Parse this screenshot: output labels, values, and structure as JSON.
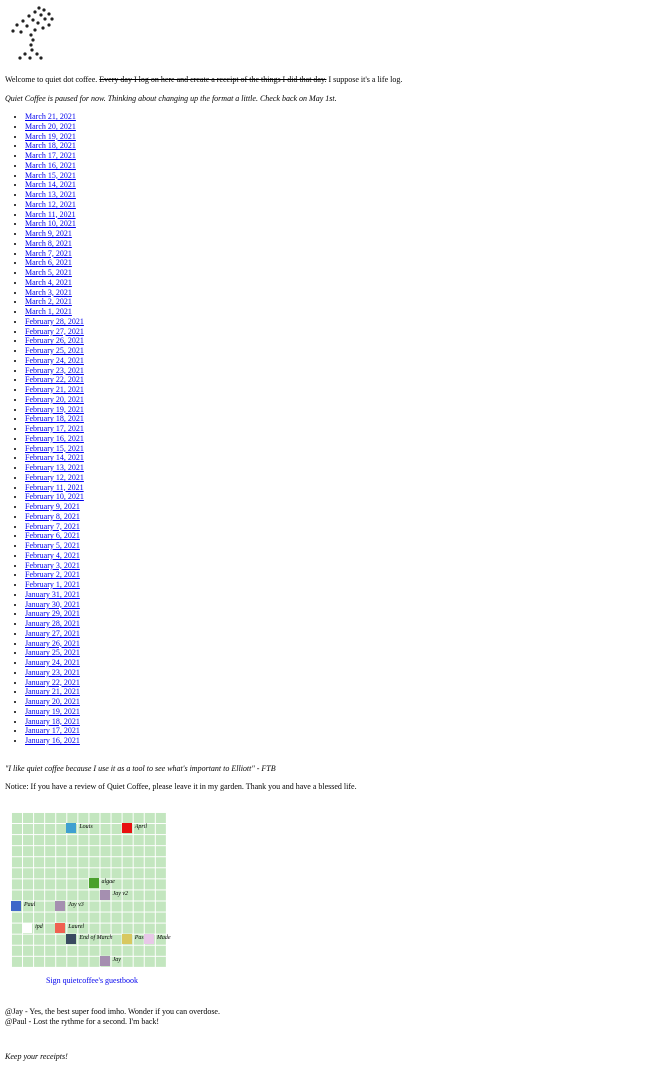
{
  "intro": {
    "text": "Welcome to quiet dot coffee.",
    "struck": "Every day I log on here and create a receipt of the things I did that day.",
    "after": "I suppose it's a life log."
  },
  "notice_paused": "Quiet Coffee is paused for now. Thinking about changing up the format a little. Check back on May 1st.",
  "dates": [
    "March 21, 2021",
    "March 20, 2021",
    "March 19, 2021",
    "March 18, 2021",
    "March 17, 2021",
    "March 16, 2021",
    "March 15, 2021",
    "March 14, 2021",
    "March 13, 2021",
    "March 12, 2021",
    "March 11, 2021",
    "March 10, 2021",
    "March 9, 2021",
    "March 8, 2021",
    "March 7, 2021",
    "March 6, 2021",
    "March 5, 2021",
    "March 4, 2021",
    "March 3, 2021",
    "March 2, 2021",
    "March 1, 2021",
    "February 28, 2021",
    "February 27, 2021",
    "February 26, 2021",
    "February 25, 2021",
    "February 24, 2021",
    "February 23, 2021",
    "February 22, 2021",
    "February 21, 2021",
    "February 20, 2021",
    "February 19, 2021",
    "February 18, 2021",
    "February 17, 2021",
    "February 16, 2021",
    "February 15, 2021",
    "February 14, 2021",
    "February 13, 2021",
    "February 12, 2021",
    "February 11, 2021",
    "February 10, 2021",
    "February 9, 2021",
    "February 8, 2021",
    "February 7, 2021",
    "February 6, 2021",
    "February 5, 2021",
    "February 4, 2021",
    "February 3, 2021",
    "February 2, 2021",
    "February 1, 2021",
    "January 31, 2021",
    "January 30, 2021",
    "January 29, 2021",
    "January 28, 2021",
    "January 27, 2021",
    "January 26, 2021",
    "January 25, 2021",
    "January 24, 2021",
    "January 23, 2021",
    "January 22, 2021",
    "January 21, 2021",
    "January 20, 2021",
    "January 19, 2021",
    "January 18, 2021",
    "January 17, 2021",
    "January 16, 2021"
  ],
  "quote": "\"I like quiet coffee because I use it as a tool to see what's important to Elliott\" - FTB",
  "notice_review": "Notice: If you have a review of Quiet Coffee, please leave it in my garden. Thank you and have a blessed life.",
  "garden": {
    "plants": [
      {
        "label": "Louis",
        "color": "#3fa0d0"
      },
      {
        "label": "April",
        "color": "#e81010"
      },
      {
        "label": "algae",
        "color": "#4aa02c"
      },
      {
        "label": "Jay v2",
        "color": "#a58fb0"
      },
      {
        "label": "Paul",
        "color": "#3f67c9"
      },
      {
        "label": "Jay v3",
        "color": "#a58fb0"
      },
      {
        "label": "ipd",
        "color": "#ffffff"
      },
      {
        "label": "Laurel",
        "color": "#f06050"
      },
      {
        "label": "End of March",
        "color": "#3a4a60"
      },
      {
        "label": "Pas",
        "color": "#d8c860"
      },
      {
        "label": "Made",
        "color": "#e8c8e8"
      },
      {
        "label": "Jay",
        "color": "#a58fb0"
      }
    ],
    "guestbook": "Sign quietcoffee's guestbook"
  },
  "comments": [
    "@Jay - Yes, the best super food imho. Wonder if you can overdose.",
    "@Paul - Lost the rythme for a second. I'm back!"
  ],
  "footer": "Keep your receipts!"
}
